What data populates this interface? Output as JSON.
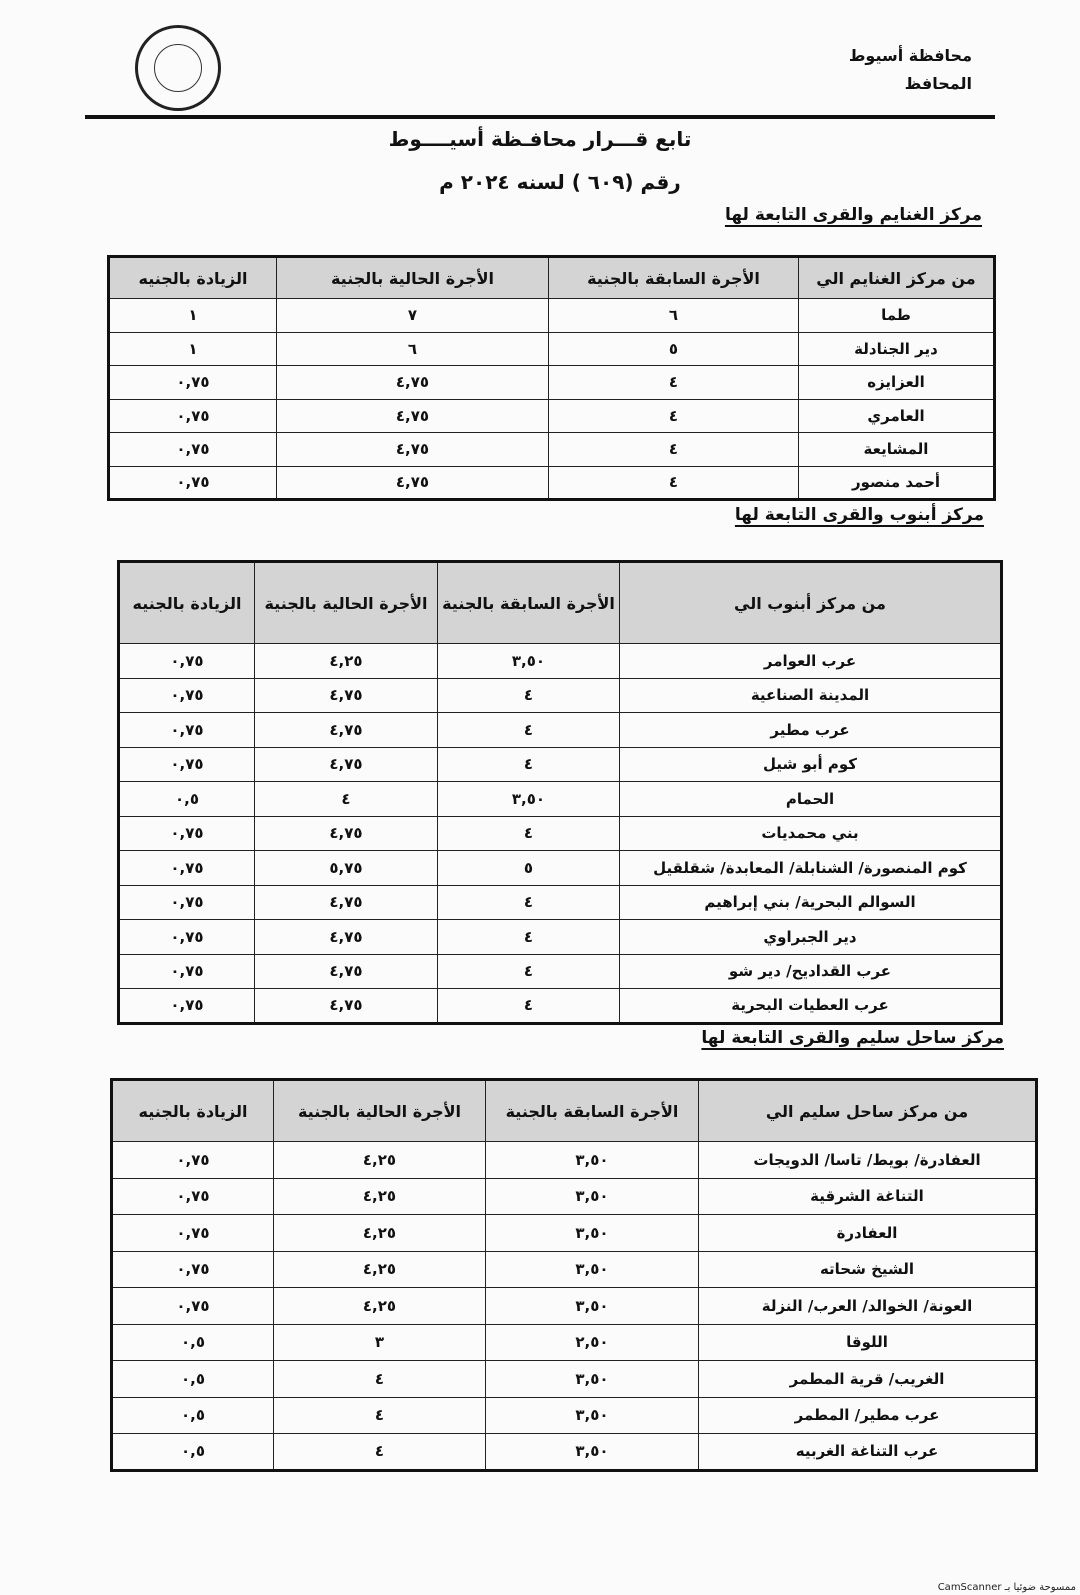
{
  "letterhead": {
    "governorate": "محافظة أسيوط",
    "office": "المحافظ"
  },
  "title": {
    "line1": "تابع قـــرار محافـظة أسيــــوط",
    "line2": "رقم (٦٠٩ ) لسنه ٢٠٢٤ م"
  },
  "sections": [
    {
      "heading": "مركز الغنايم والقرى التابعة لها",
      "columns": [
        "من مركز الغنايم الي",
        "الأجرة السابقة بالجنية",
        "الأجرة الحالية بالجنية",
        "الزيادة بالجنيه"
      ],
      "rows": [
        [
          "طما",
          "٦",
          "٧",
          "١"
        ],
        [
          "دير الجنادلة",
          "٥",
          "٦",
          "١"
        ],
        [
          "العزايزه",
          "٤",
          "٤,٧٥",
          "٠,٧٥"
        ],
        [
          "العامري",
          "٤",
          "٤,٧٥",
          "٠,٧٥"
        ],
        [
          "المشايعة",
          "٤",
          "٤,٧٥",
          "٠,٧٥"
        ],
        [
          "أحمد منصور",
          "٤",
          "٤,٧٥",
          "٠,٧٥"
        ]
      ]
    },
    {
      "heading": "مركز أبنوب والقرى التابعة لها",
      "columns": [
        "من مركز أبنوب الي",
        "الأجرة السابقة بالجنية",
        "الأجرة الحالية بالجنية",
        "الزيادة بالجنيه"
      ],
      "rows": [
        [
          "عرب العوامر",
          "٣,٥٠",
          "٤,٢٥",
          "٠,٧٥"
        ],
        [
          "المدينة الصناعية",
          "٤",
          "٤,٧٥",
          "٠,٧٥"
        ],
        [
          "عرب مطير",
          "٤",
          "٤,٧٥",
          "٠,٧٥"
        ],
        [
          "كوم أبو شيل",
          "٤",
          "٤,٧٥",
          "٠,٧٥"
        ],
        [
          "الحمام",
          "٣,٥٠",
          "٤",
          "٠,٥"
        ],
        [
          "بني محمديات",
          "٤",
          "٤,٧٥",
          "٠,٧٥"
        ],
        [
          "كوم المنصورة/ الشنابلة/ المعابدة/ شقلقيل",
          "٥",
          "٥,٧٥",
          "٠,٧٥"
        ],
        [
          "السوالم البحرية/ بني إبراهيم",
          "٤",
          "٤,٧٥",
          "٠,٧٥"
        ],
        [
          "دير الجبراوي",
          "٤",
          "٤,٧٥",
          "٠,٧٥"
        ],
        [
          "عرب القداديح/ دير شو",
          "٤",
          "٤,٧٥",
          "٠,٧٥"
        ],
        [
          "عرب العطيات البحرية",
          "٤",
          "٤,٧٥",
          "٠,٧٥"
        ]
      ]
    },
    {
      "heading": "مركز ساحل سليم والقرى التابعة لها",
      "columns": [
        "من مركز ساحل سليم الي",
        "الأجرة السابقة بالجنية",
        "الأجرة الحالية بالجنية",
        "الزيادة بالجنيه"
      ],
      "rows": [
        [
          "العفادرة/ بويط/ تاسا/ الدويجات",
          "٣,٥٠",
          "٤,٢٥",
          "٠,٧٥"
        ],
        [
          "التناغة الشرقية",
          "٣,٥٠",
          "٤,٢٥",
          "٠,٧٥"
        ],
        [
          "العفادرة",
          "٣,٥٠",
          "٤,٢٥",
          "٠,٧٥"
        ],
        [
          "الشيخ شحاته",
          "٣,٥٠",
          "٤,٢٥",
          "٠,٧٥"
        ],
        [
          "العونة/ الخوالد/ العرب/ النزلة",
          "٣,٥٠",
          "٤,٢٥",
          "٠,٧٥"
        ],
        [
          "اللوقا",
          "٢,٥٠",
          "٣",
          "٠,٥"
        ],
        [
          "الغريب/ قرية المطمر",
          "٣,٥٠",
          "٤",
          "٠,٥"
        ],
        [
          "عرب مطير/ المطمر",
          "٣,٥٠",
          "٤",
          "٠,٥"
        ],
        [
          "عرب التناغة الغربيه",
          "٣,٥٠",
          "٤",
          "٠,٥"
        ]
      ]
    }
  ],
  "footer": "ممسوحة ضوئيا بـ CamScanner"
}
